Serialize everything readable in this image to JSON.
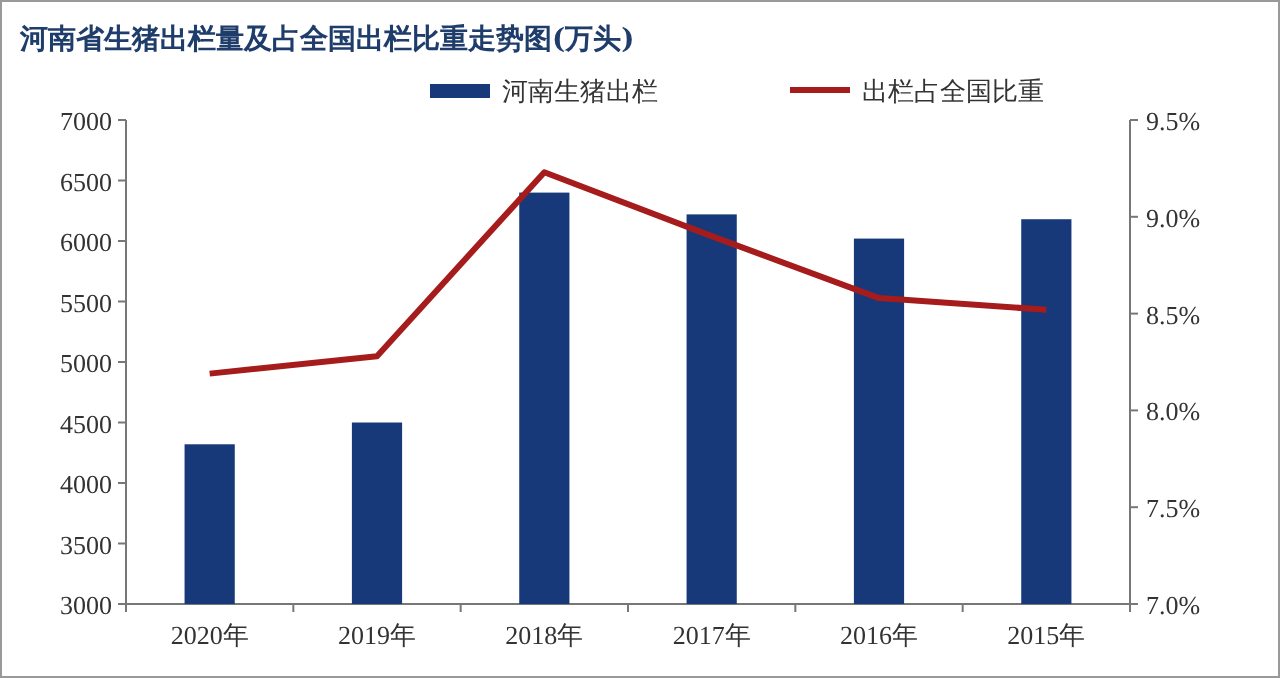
{
  "chart_data": {
    "type": "bar",
    "title": "河南省生猪出栏量及占全国出栏比重走势图(万头)",
    "categories": [
      "2020年",
      "2019年",
      "2018年",
      "2017年",
      "2016年",
      "2015年"
    ],
    "series": [
      {
        "name": "河南生猪出栏",
        "color": "#17397a",
        "values": [
          4320,
          4500,
          6400,
          6220,
          6020,
          6180
        ]
      },
      {
        "name": "出栏占全国比重",
        "type": "line",
        "axis": "y2",
        "color": "#a61c1c",
        "values": [
          8.19,
          8.28,
          9.23,
          8.9,
          8.58,
          8.52
        ]
      }
    ],
    "ylim": [
      3000,
      7000
    ],
    "yticks": [
      3000,
      3500,
      4000,
      4500,
      5000,
      5500,
      6000,
      6500,
      7000
    ],
    "y2lim": [
      7,
      9.5
    ],
    "y2ticks": [
      {
        "value": 7,
        "label": "7.0%"
      },
      {
        "value": 7.5,
        "label": "7.5%"
      },
      {
        "value": 8,
        "label": "8.0%"
      },
      {
        "value": 8.5,
        "label": "8.5%"
      },
      {
        "value": 9,
        "label": "9.0%"
      },
      {
        "value": 9.5,
        "label": "9.5%"
      }
    ],
    "legend": "top",
    "grid": false,
    "marker": "none",
    "line_style": "solid"
  }
}
